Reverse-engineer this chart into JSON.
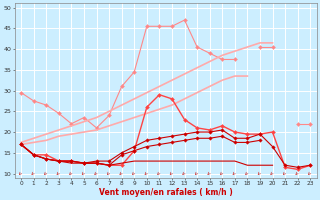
{
  "xlabel": "Vent moyen/en rafales ( km/h )",
  "background_color": "#cceeff",
  "grid_color": "#ffffff",
  "x": [
    0,
    1,
    2,
    3,
    4,
    5,
    6,
    7,
    8,
    9,
    10,
    11,
    12,
    13,
    14,
    15,
    16,
    17,
    18,
    19,
    20,
    21,
    22,
    23
  ],
  "series": [
    {
      "name": "upper_light_markers",
      "color": "#ff8888",
      "linewidth": 0.8,
      "marker": "D",
      "markersize": 2.0,
      "data": [
        29.5,
        27.5,
        26.5,
        24.5,
        22.0,
        23.5,
        21.0,
        24.0,
        31.0,
        34.5,
        45.5,
        45.5,
        45.5,
        47.0,
        40.5,
        39.0,
        37.5,
        37.5,
        null,
        40.5,
        40.5,
        null,
        22.0,
        22.0
      ]
    },
    {
      "name": "linear_upper",
      "color": "#ffaaaa",
      "linewidth": 1.2,
      "marker": null,
      "markersize": 0,
      "data": [
        17.5,
        18.5,
        19.5,
        20.5,
        21.5,
        22.5,
        23.5,
        25.0,
        26.5,
        28.0,
        29.5,
        31.0,
        32.5,
        34.0,
        35.5,
        37.0,
        38.5,
        39.5,
        40.5,
        41.5,
        41.5,
        null,
        null,
        null
      ]
    },
    {
      "name": "linear_lower",
      "color": "#ffaaaa",
      "linewidth": 1.2,
      "marker": null,
      "markersize": 0,
      "data": [
        17.0,
        17.5,
        18.0,
        19.0,
        19.5,
        20.0,
        20.5,
        21.5,
        22.5,
        23.5,
        24.5,
        25.5,
        26.5,
        28.0,
        29.5,
        31.0,
        32.5,
        33.5,
        33.5,
        null,
        null,
        null,
        null,
        null
      ]
    },
    {
      "name": "mid_bright_red",
      "color": "#ff4444",
      "linewidth": 1.0,
      "marker": "D",
      "markersize": 2.0,
      "data": [
        17.0,
        14.5,
        14.5,
        13.0,
        13.0,
        12.5,
        12.5,
        12.0,
        12.0,
        15.5,
        26.0,
        29.0,
        28.0,
        23.0,
        21.0,
        20.5,
        21.5,
        20.0,
        19.5,
        19.5,
        20.0,
        11.5,
        11.0,
        12.0
      ]
    },
    {
      "name": "low_dark1",
      "color": "#cc0000",
      "linewidth": 0.8,
      "marker": "D",
      "markersize": 1.8,
      "data": [
        17.0,
        14.5,
        13.5,
        13.0,
        13.0,
        12.5,
        13.0,
        13.0,
        15.0,
        16.5,
        18.0,
        18.5,
        19.0,
        19.5,
        20.0,
        20.0,
        20.5,
        18.5,
        18.5,
        19.5,
        16.5,
        12.0,
        11.5,
        12.0
      ]
    },
    {
      "name": "low_dark2",
      "color": "#cc0000",
      "linewidth": 0.8,
      "marker": "D",
      "markersize": 1.8,
      "data": [
        17.0,
        14.5,
        13.5,
        13.0,
        13.0,
        12.5,
        12.5,
        12.0,
        14.5,
        15.5,
        16.5,
        17.0,
        17.5,
        18.0,
        18.5,
        18.5,
        19.0,
        17.5,
        17.5,
        18.0,
        null,
        null,
        null,
        null
      ]
    },
    {
      "name": "flat_dark",
      "color": "#cc0000",
      "linewidth": 0.8,
      "marker": null,
      "markersize": 0,
      "data": [
        17.0,
        14.5,
        13.5,
        13.0,
        12.5,
        12.5,
        12.5,
        12.0,
        12.5,
        13.0,
        13.0,
        13.0,
        13.0,
        13.0,
        13.0,
        13.0,
        13.0,
        13.0,
        12.0,
        12.0,
        12.0,
        null,
        null,
        null
      ]
    }
  ],
  "ylim": [
    9,
    51
  ],
  "yticks": [
    10,
    15,
    20,
    25,
    30,
    35,
    40,
    45,
    50
  ],
  "xlim": [
    -0.5,
    23.5
  ],
  "xticks": [
    0,
    1,
    2,
    3,
    4,
    5,
    6,
    7,
    8,
    9,
    10,
    11,
    12,
    13,
    14,
    15,
    16,
    17,
    18,
    19,
    20,
    21,
    22,
    23
  ]
}
